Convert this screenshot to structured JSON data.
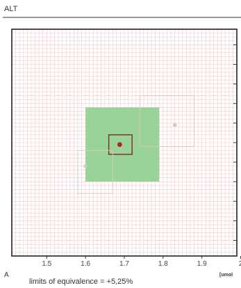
{
  "panel": {
    "title": "ALT",
    "letter": "A",
    "caption": "limits of equivalence = +5,25%"
  },
  "chart_data": {
    "type": "scatter",
    "title": "ALT",
    "xlabel": "",
    "ylabel": "",
    "x_unit_label": "[umol",
    "x_ticks": [
      "1.5",
      "1.6",
      "1.7",
      "1.8",
      "1.9",
      "2"
    ],
    "x_tick_values": [
      1.5,
      1.6,
      1.7,
      1.8,
      1.9,
      2.0
    ],
    "xlim": [
      1.41,
      1.99
    ],
    "ylim": [
      1.41,
      1.99
    ],
    "grid": true,
    "grid_step": 0.01,
    "equivalence_limit_percent": 5.25,
    "equivalence_region": {
      "x": [
        1.6,
        1.79
      ],
      "y": [
        1.6,
        1.79
      ],
      "color": "#8fd08f"
    },
    "points": [
      {
        "name": "red-point",
        "x": 1.688,
        "y": 1.695,
        "color": "#b42323",
        "box": {
          "x": [
            1.66,
            1.72
          ],
          "y": [
            1.67,
            1.72
          ]
        }
      },
      {
        "name": "grey-point-upper-right",
        "x": 1.83,
        "y": 1.745,
        "color": "#c9c9c9",
        "box": {
          "x": [
            1.74,
            1.88
          ],
          "y": [
            1.69,
            1.82
          ]
        }
      },
      {
        "name": "grey-point-lower-left",
        "x": 1.6,
        "y": 1.64,
        "color": "#cccccc",
        "box": {
          "x": [
            1.58,
            1.67
          ],
          "y": [
            1.57,
            1.68
          ]
        }
      },
      {
        "name": "grey-point-center",
        "x": 1.695,
        "y": 1.68,
        "color": "#bfbfbf"
      }
    ],
    "colors": {
      "grid": "#f2c9c9",
      "frame": "#222222",
      "region": "#8fd08f"
    }
  }
}
